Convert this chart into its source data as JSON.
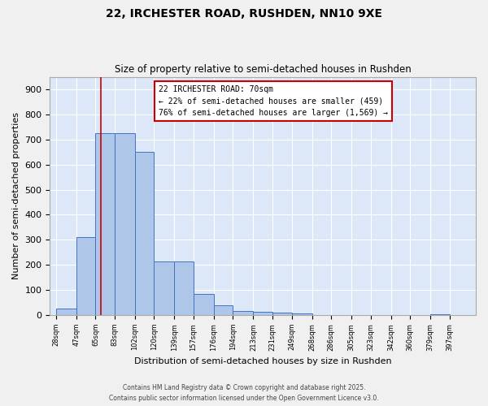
{
  "title_line1": "22, IRCHESTER ROAD, RUSHDEN, NN10 9XE",
  "title_line2": "Size of property relative to semi-detached houses in Rushden",
  "xlabel": "Distribution of semi-detached houses by size in Rushden",
  "ylabel": "Number of semi-detached properties",
  "bar_edges": [
    28,
    47,
    65,
    83,
    102,
    120,
    139,
    157,
    176,
    194,
    213,
    231,
    249,
    268,
    286,
    305,
    323,
    342,
    360,
    379,
    397
  ],
  "bar_heights": [
    25,
    310,
    725,
    725,
    650,
    215,
    215,
    85,
    38,
    18,
    14,
    10,
    8,
    0,
    0,
    0,
    0,
    0,
    0,
    5
  ],
  "bar_color": "#aec6e8",
  "bar_edge_color": "#4472c4",
  "bg_color": "#dce8f8",
  "grid_color": "#ffffff",
  "vline_x": 70,
  "vline_color": "#cc0000",
  "annotation_text": "22 IRCHESTER ROAD: 70sqm\n← 22% of semi-detached houses are smaller (459)\n76% of semi-detached houses are larger (1,569) →",
  "annotation_box_color": "#ffffff",
  "annotation_box_edge": "#cc0000",
  "ylim": [
    0,
    950
  ],
  "yticks": [
    0,
    100,
    200,
    300,
    400,
    500,
    600,
    700,
    800,
    900
  ],
  "footer_line1": "Contains HM Land Registry data © Crown copyright and database right 2025.",
  "footer_line2": "Contains public sector information licensed under the Open Government Licence v3.0.",
  "tick_labels": [
    "28sqm",
    "47sqm",
    "65sqm",
    "83sqm",
    "102sqm",
    "120sqm",
    "139sqm",
    "157sqm",
    "176sqm",
    "194sqm",
    "213sqm",
    "231sqm",
    "249sqm",
    "268sqm",
    "286sqm",
    "305sqm",
    "323sqm",
    "342sqm",
    "360sqm",
    "379sqm",
    "397sqm"
  ]
}
